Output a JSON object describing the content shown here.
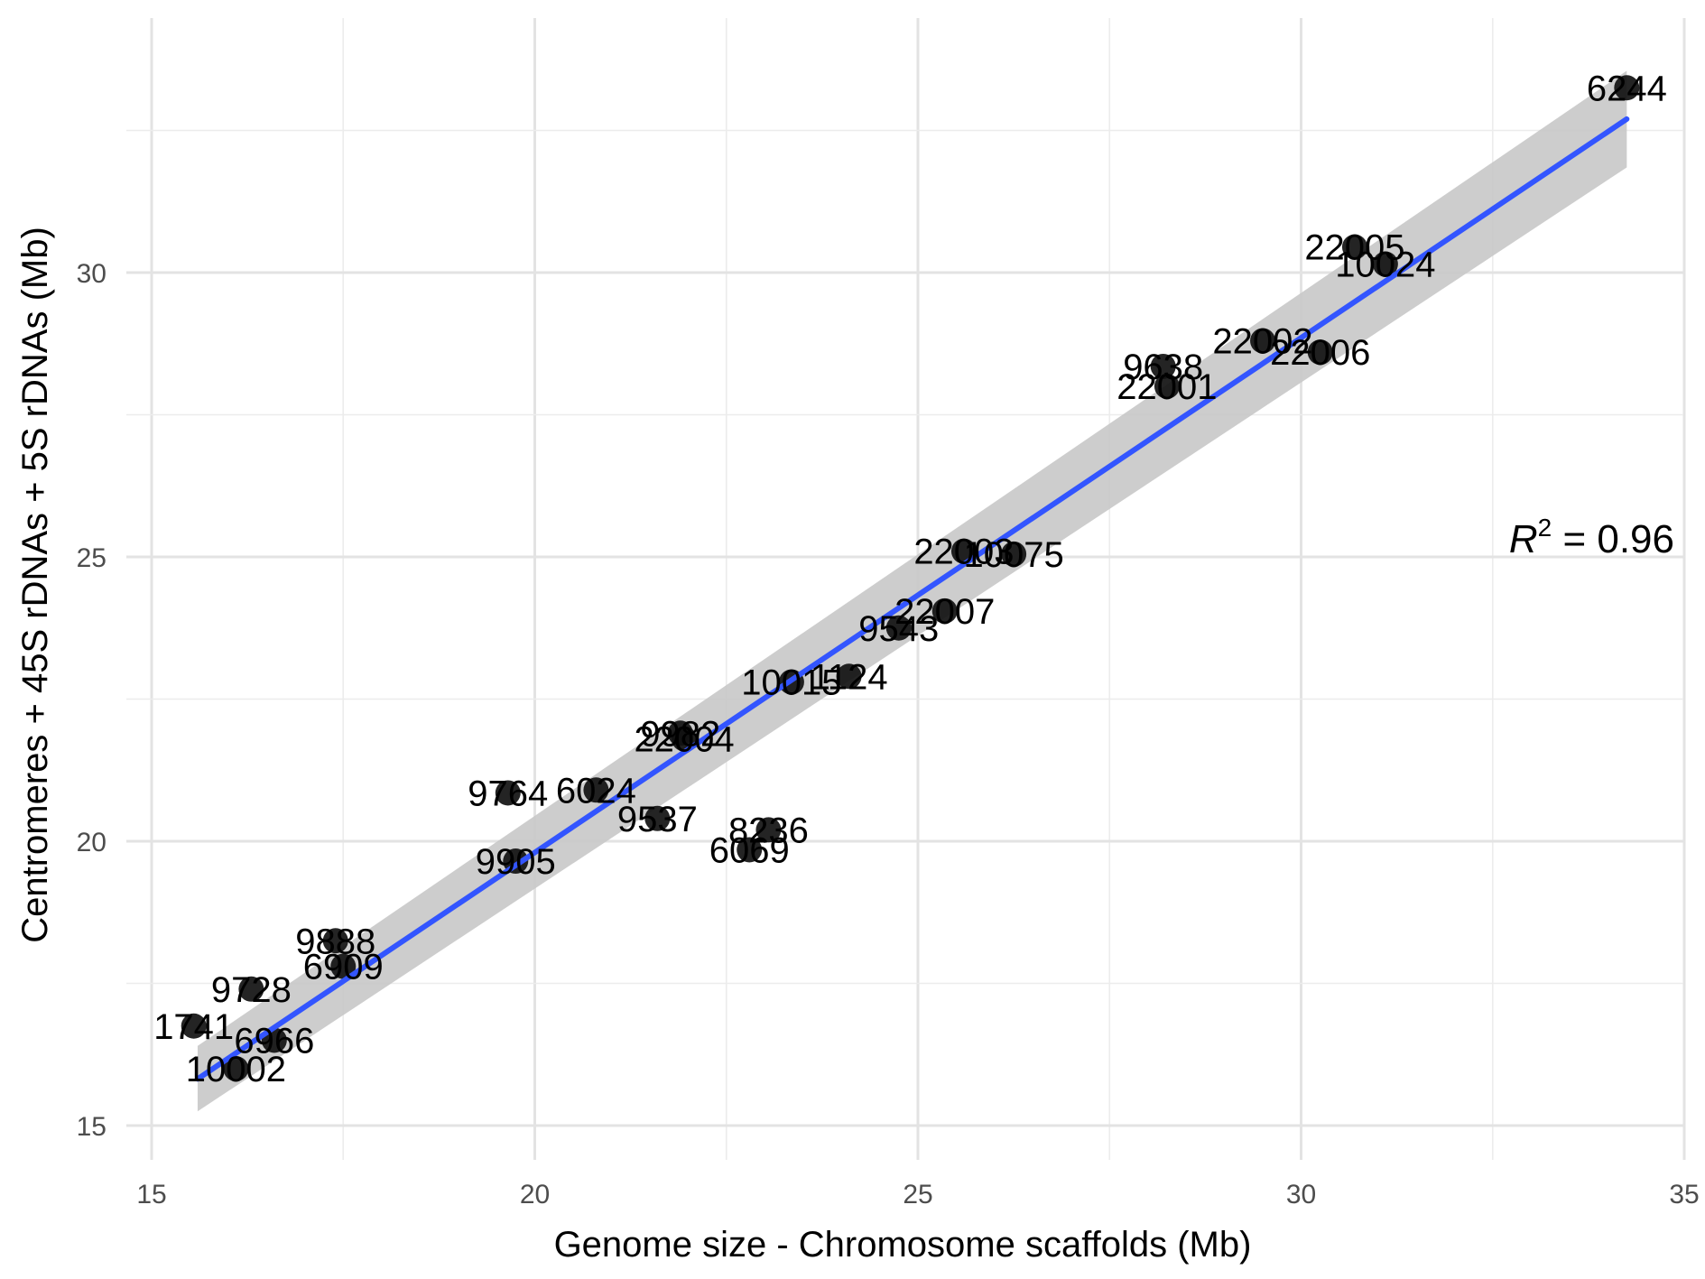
{
  "chart_data": {
    "type": "scatter",
    "title": "",
    "xlabel": "Genome size - Chromosome scaffolds (Mb)",
    "ylabel": "Centromeres + 45S rDNAs + 5S rDNAs  (Mb)",
    "xlim": [
      15,
      35
    ],
    "ylim": [
      15,
      35
    ],
    "x_ticks": [
      15,
      20,
      25,
      30,
      35
    ],
    "y_ticks": [
      15,
      20,
      25,
      30
    ],
    "x_tick_labels": [
      "15",
      "20",
      "25",
      "30",
      "35"
    ],
    "y_tick_labels": [
      "15",
      "20",
      "25",
      "30"
    ],
    "grid": true,
    "legend": "none",
    "points": [
      {
        "label": "6244",
        "x": 34.25,
        "y": 33.25
      },
      {
        "label": "22005",
        "x": 30.7,
        "y": 30.45
      },
      {
        "label": "10024",
        "x": 31.1,
        "y": 30.15
      },
      {
        "label": "22002",
        "x": 29.5,
        "y": 28.8
      },
      {
        "label": "22006",
        "x": 30.25,
        "y": 28.6
      },
      {
        "label": "9638",
        "x": 28.2,
        "y": 28.35
      },
      {
        "label": "22001",
        "x": 28.25,
        "y": 28.0
      },
      {
        "label": "22003",
        "x": 25.6,
        "y": 25.1
      },
      {
        "label": "10075",
        "x": 26.25,
        "y": 25.05
      },
      {
        "label": "22007",
        "x": 25.35,
        "y": 24.05
      },
      {
        "label": "9543",
        "x": 24.75,
        "y": 23.75
      },
      {
        "label": "10015",
        "x": 23.35,
        "y": 22.8
      },
      {
        "label": "1124",
        "x": 24.1,
        "y": 22.9
      },
      {
        "label": "9982",
        "x": 21.9,
        "y": 21.9
      },
      {
        "label": "22004",
        "x": 21.95,
        "y": 21.8
      },
      {
        "label": "9764",
        "x": 19.65,
        "y": 20.85
      },
      {
        "label": "6024",
        "x": 20.8,
        "y": 20.9
      },
      {
        "label": "9537",
        "x": 21.6,
        "y": 20.4
      },
      {
        "label": "8236",
        "x": 23.05,
        "y": 20.2
      },
      {
        "label": "6069",
        "x": 22.8,
        "y": 19.85
      },
      {
        "label": "9905",
        "x": 19.75,
        "y": 19.65
      },
      {
        "label": "9888",
        "x": 17.4,
        "y": 18.25
      },
      {
        "label": "6909",
        "x": 17.5,
        "y": 17.8
      },
      {
        "label": "9728",
        "x": 16.3,
        "y": 17.4
      },
      {
        "label": "1741",
        "x": 15.55,
        "y": 16.75
      },
      {
        "label": "6966",
        "x": 16.6,
        "y": 16.5
      },
      {
        "label": "10002",
        "x": 16.1,
        "y": 16.0
      }
    ],
    "fit": {
      "method": "linear",
      "x_start": 15.6,
      "y_start": 15.82,
      "x_end": 34.25,
      "y_end": 32.7,
      "ci_start": [
        15.25,
        16.4
      ],
      "ci_end": [
        31.85,
        33.55
      ],
      "line_color": "#3355FF",
      "band_color": "#C8C8C8"
    },
    "annotation": {
      "prefix": "R",
      "superscript": "2",
      "suffix": " = 0.96"
    }
  }
}
